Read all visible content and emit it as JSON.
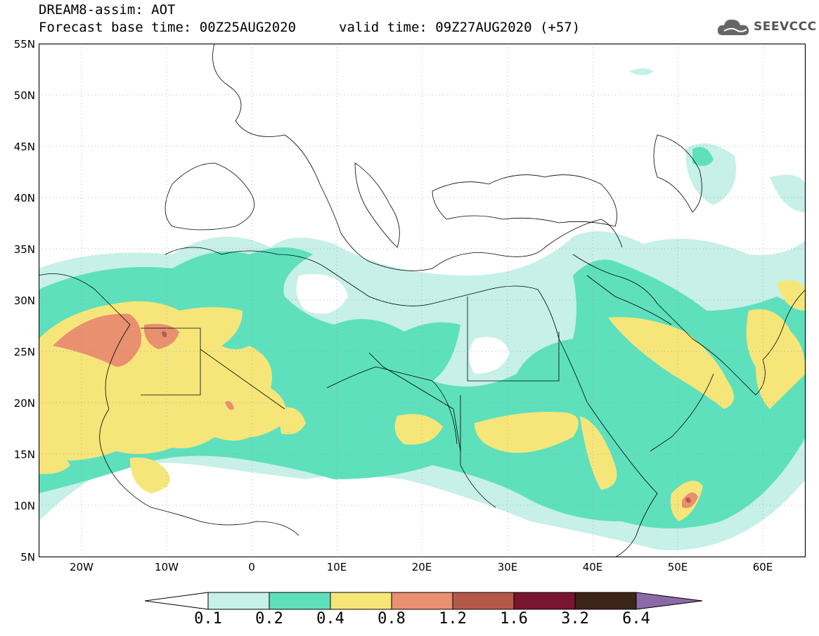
{
  "title": {
    "line1": "DREAM8-assim: AOT",
    "line2": "Forecast base time: 00Z25AUG2020",
    "valid": "valid time: 09Z27AUG2020 (+57)"
  },
  "logo": {
    "text": "SEEVCCC"
  },
  "colors": {
    "c1": "#c6f0e8",
    "c2": "#5ee0bd",
    "c3": "#f6e67a",
    "c4": "#e89070",
    "c5": "#b55a48",
    "c6": "#7a1530",
    "c7": "#3d2418",
    "c8": "#8c6aa8",
    "frame": "#000000"
  },
  "axes": {
    "lat_labels": [
      "55N",
      "50N",
      "45N",
      "40N",
      "35N",
      "30N",
      "25N",
      "20N",
      "15N",
      "10N",
      "5N"
    ],
    "lat_values": [
      55,
      50,
      45,
      40,
      35,
      30,
      25,
      20,
      15,
      10,
      5
    ],
    "lon_labels": [
      "20W",
      "10W",
      "0",
      "10E",
      "20E",
      "30E",
      "40E",
      "50E",
      "60E"
    ],
    "lon_values": [
      -20,
      -10,
      0,
      10,
      20,
      30,
      40,
      50,
      60
    ],
    "lon_range": [
      -25,
      65
    ],
    "lat_range": [
      5,
      55
    ]
  },
  "colorbar": {
    "labels": [
      "0.1",
      "0.2",
      "0.4",
      "0.8",
      "1.2",
      "1.6",
      "3.2",
      "6.4"
    ]
  }
}
